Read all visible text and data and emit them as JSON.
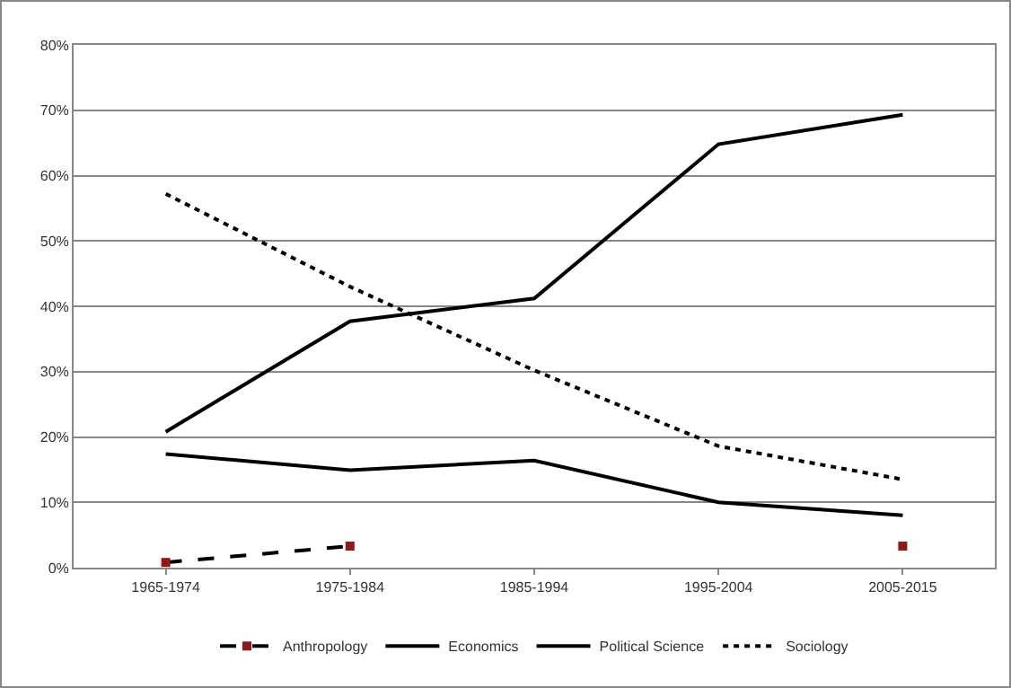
{
  "chart_data": {
    "type": "line",
    "categories": [
      "1965-1974",
      "1975-1984",
      "1985-1994",
      "1995-2004",
      "2005-2015"
    ],
    "series": [
      {
        "name": "Anthropology",
        "color": "#000000",
        "values": [
          0.8,
          3.3,
          null,
          null,
          3.3
        ],
        "colors": [
          "#8b1a1a",
          "#8b1a1a",
          "#8b1a1a",
          "#8b1a1a",
          "#8b1a1a"
        ],
        "line_style": "dashed",
        "marker": "square"
      },
      {
        "name": "Economics",
        "color": "#000000",
        "values": [
          17.4,
          14.9,
          16.4,
          10,
          8
        ],
        "line_style": "solid",
        "marker": "none"
      },
      {
        "name": "Political Science",
        "color": "#000000",
        "values": [
          20.8,
          37.7,
          41.2,
          64.8,
          69.3
        ],
        "line_style": "solid",
        "marker": "none"
      },
      {
        "name": "Sociology",
        "color": "#000000",
        "values": [
          57.2,
          43,
          30.2,
          18.6,
          13.5
        ],
        "line_style": "dotted",
        "marker": "none"
      }
    ],
    "ylim": [
      0,
      80
    ],
    "yticks": [
      {
        "value": 0,
        "label": "0%"
      },
      {
        "value": 10,
        "label": "10%"
      },
      {
        "value": 20,
        "label": "20%"
      },
      {
        "value": 30,
        "label": "30%"
      },
      {
        "value": 40,
        "label": "40%"
      },
      {
        "value": 50,
        "label": "50%"
      },
      {
        "value": 60,
        "label": "60%"
      },
      {
        "value": 70,
        "label": "70%"
      },
      {
        "value": 80,
        "label": "80%"
      }
    ],
    "grid": "y",
    "legend": "bottom"
  }
}
